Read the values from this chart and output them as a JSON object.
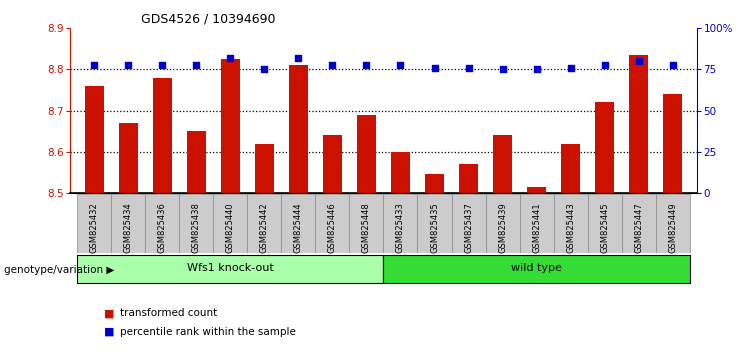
{
  "title": "GDS4526 / 10394690",
  "categories": [
    "GSM825432",
    "GSM825434",
    "GSM825436",
    "GSM825438",
    "GSM825440",
    "GSM825442",
    "GSM825444",
    "GSM825446",
    "GSM825448",
    "GSM825433",
    "GSM825435",
    "GSM825437",
    "GSM825439",
    "GSM825441",
    "GSM825443",
    "GSM825445",
    "GSM825447",
    "GSM825449"
  ],
  "red_values": [
    8.76,
    8.67,
    8.78,
    8.65,
    8.825,
    8.62,
    8.81,
    8.64,
    8.69,
    8.6,
    8.545,
    8.57,
    8.64,
    8.515,
    8.62,
    8.72,
    8.835,
    8.74
  ],
  "blue_values": [
    78,
    78,
    78,
    78,
    82,
    75,
    82,
    78,
    78,
    78,
    76,
    76,
    75,
    75,
    76,
    78,
    80,
    78
  ],
  "ylim_left": [
    8.5,
    8.9
  ],
  "ylim_right": [
    0,
    100
  ],
  "yticks_left": [
    8.5,
    8.6,
    8.7,
    8.8,
    8.9
  ],
  "yticks_right": [
    0,
    25,
    50,
    75,
    100
  ],
  "ytick_right_labels": [
    "0",
    "25",
    "50",
    "75",
    "100%"
  ],
  "group1_label": "Wfs1 knock-out",
  "group2_label": "wild type",
  "group1_count": 9,
  "group2_count": 9,
  "group1_color": "#AAFFAA",
  "group2_color": "#33DD33",
  "bar_color": "#CC1100",
  "dot_color": "#0000CC",
  "bar_bottom": 8.5,
  "legend_red": "transformed count",
  "legend_blue": "percentile rank within the sample",
  "genotype_label": "genotype/variation",
  "grid_lines": [
    8.6,
    8.7,
    8.8
  ],
  "xtick_bg_color": "#CCCCCC",
  "spine_bottom_color": "#000000"
}
